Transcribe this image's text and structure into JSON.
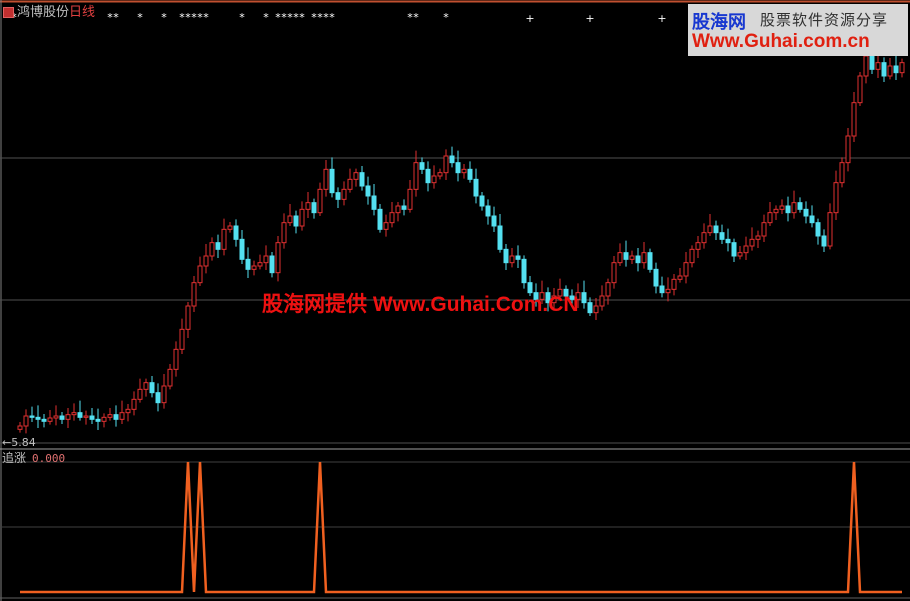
{
  "header": {
    "stock_name": "鸿博股份",
    "period": "日线",
    "icon": "stock-icon"
  },
  "main_panel": {
    "low_marker_label": "5.84",
    "low_arrow": "←"
  },
  "indicator_panel": {
    "name": "追涨",
    "current_value": "0.000"
  },
  "watermark": "股海网提供 Www.Guhai.Com.CN",
  "logo": {
    "brand": "股海网",
    "slogan": "股票软件资源分享",
    "url": "Www.Guhai.com.cn"
  },
  "colors": {
    "up": "#e03030",
    "down": "#54e0f0",
    "indicator": "#f06020",
    "grid": "#505050",
    "background": "#000000"
  },
  "chart_data": [
    {
      "type": "candlestick",
      "title": "",
      "lowest_price_label": 5.84,
      "grid": true,
      "closes": [
        6.05,
        6.2,
        6.18,
        6.15,
        6.12,
        6.17,
        6.2,
        6.15,
        6.22,
        6.25,
        6.18,
        6.2,
        6.15,
        6.12,
        6.18,
        6.22,
        6.15,
        6.25,
        6.3,
        6.45,
        6.6,
        6.7,
        6.55,
        6.4,
        6.65,
        6.9,
        7.2,
        7.5,
        7.85,
        8.2,
        8.45,
        8.6,
        8.8,
        8.7,
        9.0,
        9.05,
        8.85,
        8.55,
        8.4,
        8.45,
        8.5,
        8.6,
        8.35,
        8.8,
        9.1,
        9.2,
        9.05,
        9.3,
        9.4,
        9.25,
        9.6,
        9.9,
        9.55,
        9.45,
        9.6,
        9.75,
        9.85,
        9.65,
        9.5,
        9.3,
        9.0,
        9.1,
        9.25,
        9.35,
        9.3,
        9.6,
        10.0,
        9.9,
        9.7,
        9.8,
        9.85,
        10.1,
        10.0,
        9.85,
        9.9,
        9.75,
        9.5,
        9.35,
        9.2,
        9.05,
        8.7,
        8.5,
        8.6,
        8.55,
        8.2,
        8.05,
        7.95,
        8.05,
        7.9,
        8.0,
        8.1,
        8.0,
        7.95,
        8.05,
        7.9,
        7.75,
        7.85,
        8.0,
        8.2,
        8.5,
        8.65,
        8.55,
        8.6,
        8.5,
        8.65,
        8.4,
        8.15,
        8.05,
        8.1,
        8.25,
        8.3,
        8.5,
        8.7,
        8.8,
        8.95,
        9.05,
        8.95,
        8.85,
        8.8,
        8.6,
        8.65,
        8.75,
        8.85,
        8.9,
        9.1,
        9.25,
        9.3,
        9.35,
        9.25,
        9.4,
        9.3,
        9.2,
        9.1,
        8.9,
        8.75,
        9.25,
        9.7,
        10.0,
        10.4,
        10.9,
        11.3,
        11.6,
        11.4,
        11.5,
        11.3,
        11.45,
        11.35,
        11.5
      ],
      "signal_marker_bars": [
        -1,
        15,
        16,
        20,
        24,
        27,
        28,
        29,
        30,
        31,
        37,
        41,
        43,
        44,
        45,
        46,
        47,
        49,
        50,
        51,
        52,
        65,
        66,
        71
      ],
      "signal_plus_bars": [
        85,
        95,
        107
      ]
    },
    {
      "type": "line",
      "series": [
        {
          "name": "追涨",
          "spike_bars": [
            28,
            30,
            50,
            139
          ],
          "spike_value": 1,
          "base_value": 0
        }
      ],
      "ylim": [
        0,
        1
      ]
    }
  ]
}
